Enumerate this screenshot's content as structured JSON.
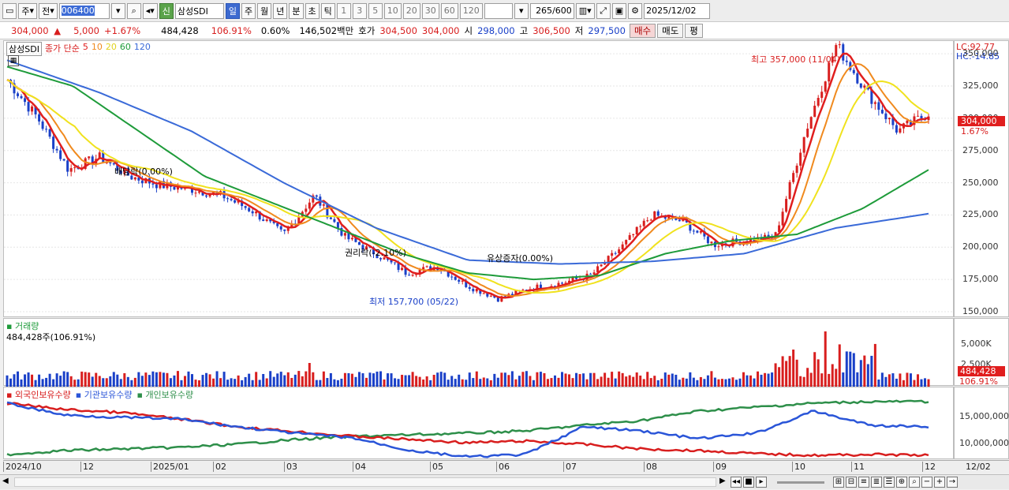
{
  "toolbar": {
    "mode": "주",
    "type": "전",
    "code": "006400",
    "badge": "신",
    "name": "삼성SDI",
    "periods": [
      "일",
      "주",
      "월",
      "년",
      "분",
      "초",
      "틱"
    ],
    "nums": [
      "1",
      "3",
      "5",
      "10",
      "20",
      "30",
      "60",
      "120"
    ],
    "count": "265",
    "total": "/600",
    "date": "2025/12/02"
  },
  "quote": {
    "price": "304,000",
    "change": "5,000",
    "rate": "+1.67%",
    "volume": "484,428",
    "vol_rate": "106.91%",
    "turnover": "0.60%",
    "amount": "146,502백만",
    "hoga_label": "호가",
    "bid": "304,500",
    "ask": "304,000",
    "open_label": "시",
    "open": "298,000",
    "high_label": "고",
    "high": "306,500",
    "low_label": "저",
    "low": "297,500",
    "buy": "매수",
    "sell": "매도",
    "avg": "평"
  },
  "price_panel": {
    "legend_name": "삼성SDI",
    "legend_type": "종가 단순",
    "ma_labels": [
      "5",
      "10",
      "20",
      "60",
      "120"
    ],
    "ma_colors": [
      "#e01e1e",
      "#f08a1e",
      "#f0e21e",
      "#1e9b3a",
      "#3a6ad8"
    ],
    "lc": "LC:92.77",
    "hc": "HC:-14.85",
    "y_ticks": [
      "350,000",
      "325,000",
      "300,000",
      "275,000",
      "250,000",
      "225,000",
      "200,000",
      "175,000",
      "150,000"
    ],
    "cur_price": "304,000",
    "cur_rate": "1.67%",
    "ann_high": "최고 357,000 (11/04)",
    "ann_low": "최저 157,700 (05/22)",
    "ann_div": "배당락(0.00%)",
    "ann_right": "권리락(-2.10%)",
    "ann_rights_issue": "유상증자(0.00%)"
  },
  "volume_panel": {
    "title": "거래량",
    "value": "484,428주(106.91%)",
    "y_ticks": [
      "5,000K",
      "2,500K"
    ],
    "cur": "484,428",
    "cur_rate": "106.91%"
  },
  "holdings_panel": {
    "legends": [
      "외국인보유수량",
      "기관보유수량",
      "개인보유수량"
    ],
    "colors": [
      "#d81e1e",
      "#2a55d8",
      "#2e8f4a"
    ],
    "y_ticks": [
      "15,000,000",
      "10,000,000"
    ]
  },
  "x_axis": {
    "labels": [
      "2024/10",
      "12",
      "2025/01",
      "02",
      "03",
      "04",
      "05",
      "06",
      "07",
      "08",
      "09",
      "10",
      "11",
      "12"
    ],
    "right": "12/02"
  },
  "chart_data": {
    "type": "line",
    "series": [
      {
        "name": "삼성SDI",
        "values": [
          330000,
          300000,
          260000,
          270000,
          255000,
          248000,
          245000,
          240000,
          228000,
          210000,
          240000,
          208000,
          195000,
          180000,
          185000,
          170000,
          160000,
          168000,
          172000,
          178000,
          200000,
          225000,
          220000,
          202000,
          205000,
          208000,
          290000,
          357000,
          320000,
          290000,
          304000
        ]
      }
    ],
    "ylim": [
      150000,
      355000
    ]
  }
}
